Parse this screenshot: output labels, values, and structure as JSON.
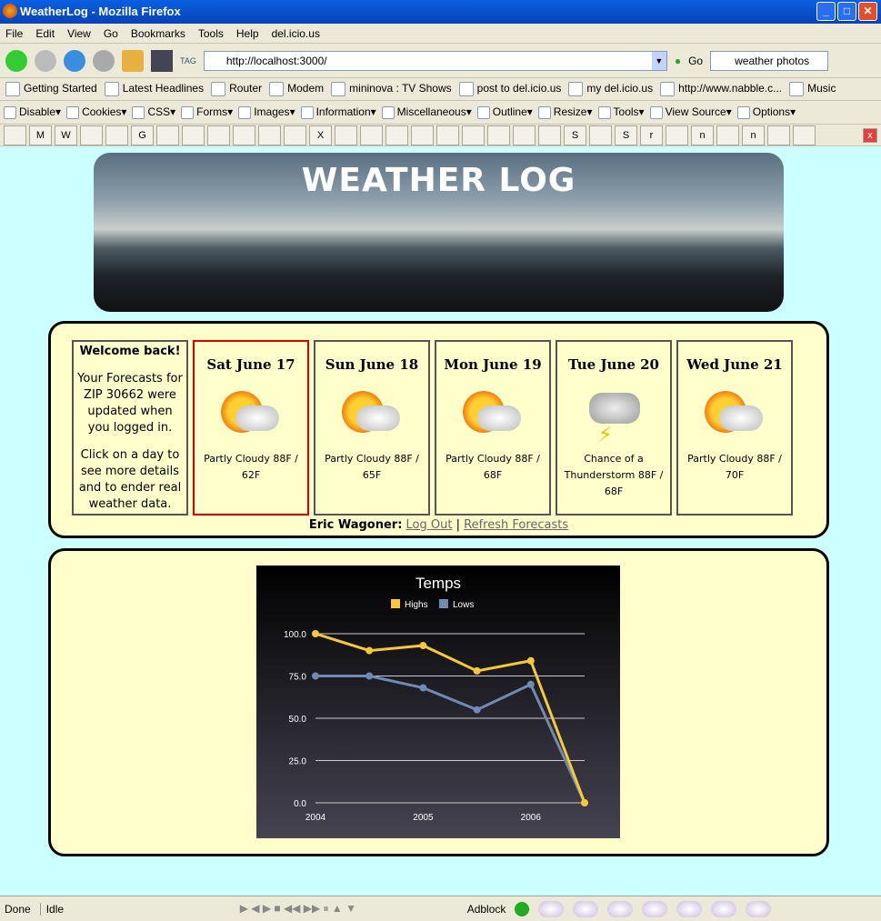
{
  "window": {
    "title": "WeatherLog - Mozilla Firefox"
  },
  "menu": [
    "File",
    "Edit",
    "View",
    "Go",
    "Bookmarks",
    "Tools",
    "Help",
    "del.icio.us"
  ],
  "nav": {
    "url": "http://localhost:3000/",
    "go": "Go",
    "search": "weather photos",
    "tag": "TAG"
  },
  "bookmarks": [
    "Getting Started",
    "Latest Headlines",
    "Router",
    "Modem",
    "mininova : TV Shows",
    "post to del.icio.us",
    "my del.icio.us",
    "http://www.nabble.c...",
    "Music"
  ],
  "webdev": [
    "Disable",
    "Cookies",
    "CSS",
    "Forms",
    "Images",
    "Information",
    "Miscellaneous",
    "Outline",
    "Resize",
    "Tools",
    "View Source",
    "Options"
  ],
  "tabs": [
    "",
    "M",
    "W",
    "",
    "",
    "G",
    "",
    "",
    "",
    "",
    "",
    "",
    "X",
    "",
    "",
    "",
    "",
    "",
    "",
    "",
    "",
    "",
    "S",
    "",
    "S",
    "r",
    "",
    "n",
    "",
    "n",
    "",
    ""
  ],
  "banner": {
    "title": "WEATHER LOG"
  },
  "welcome": {
    "heading": "Welcome back!",
    "text1": "Your Forecasts for ZIP 30662 were updated when you logged in.",
    "text2": "Click on a day to see more details and to ender real weather data."
  },
  "days": [
    {
      "date": "Sat June 17",
      "icon": "partly-cloudy-icon",
      "forecast": "Partly Cloudy 88F / 62F"
    },
    {
      "date": "Sun June 18",
      "icon": "partly-cloudy-icon",
      "forecast": "Partly Cloudy 88F / 65F"
    },
    {
      "date": "Mon June 19",
      "icon": "partly-cloudy-icon",
      "forecast": "Partly Cloudy 88F / 68F"
    },
    {
      "date": "Tue June 20",
      "icon": "thunderstorm-icon",
      "forecast": "Chance of a Thunderstorm 88F / 68F"
    },
    {
      "date": "Wed June 21",
      "icon": "partly-cloudy-icon",
      "forecast": "Partly Cloudy 88F / 70F"
    }
  ],
  "user": {
    "name": "Eric Wagoner:",
    "logout": "Log Out",
    "sep": "|",
    "refresh": "Refresh Forecasts"
  },
  "chart_data": {
    "type": "line",
    "title": "Temps",
    "x": [
      2004,
      2004.5,
      2005,
      2005.5,
      2006,
      2006.5
    ],
    "xticks": [
      "2004",
      "2005",
      "2006"
    ],
    "yticks": [
      "0.0",
      "25.0",
      "50.0",
      "75.0",
      "100.0"
    ],
    "ylim": [
      0,
      100
    ],
    "grid": true,
    "legend": "top",
    "series": [
      {
        "name": "Highs",
        "color": "#f5c93a",
        "values": [
          100,
          90,
          93,
          78,
          84,
          0
        ]
      },
      {
        "name": "Lows",
        "color": "#6f8ab3",
        "values": [
          75,
          75,
          68,
          55,
          70,
          0
        ]
      }
    ]
  },
  "status": {
    "left": "Done",
    "mid": "Idle",
    "adblock": "Adblock"
  }
}
